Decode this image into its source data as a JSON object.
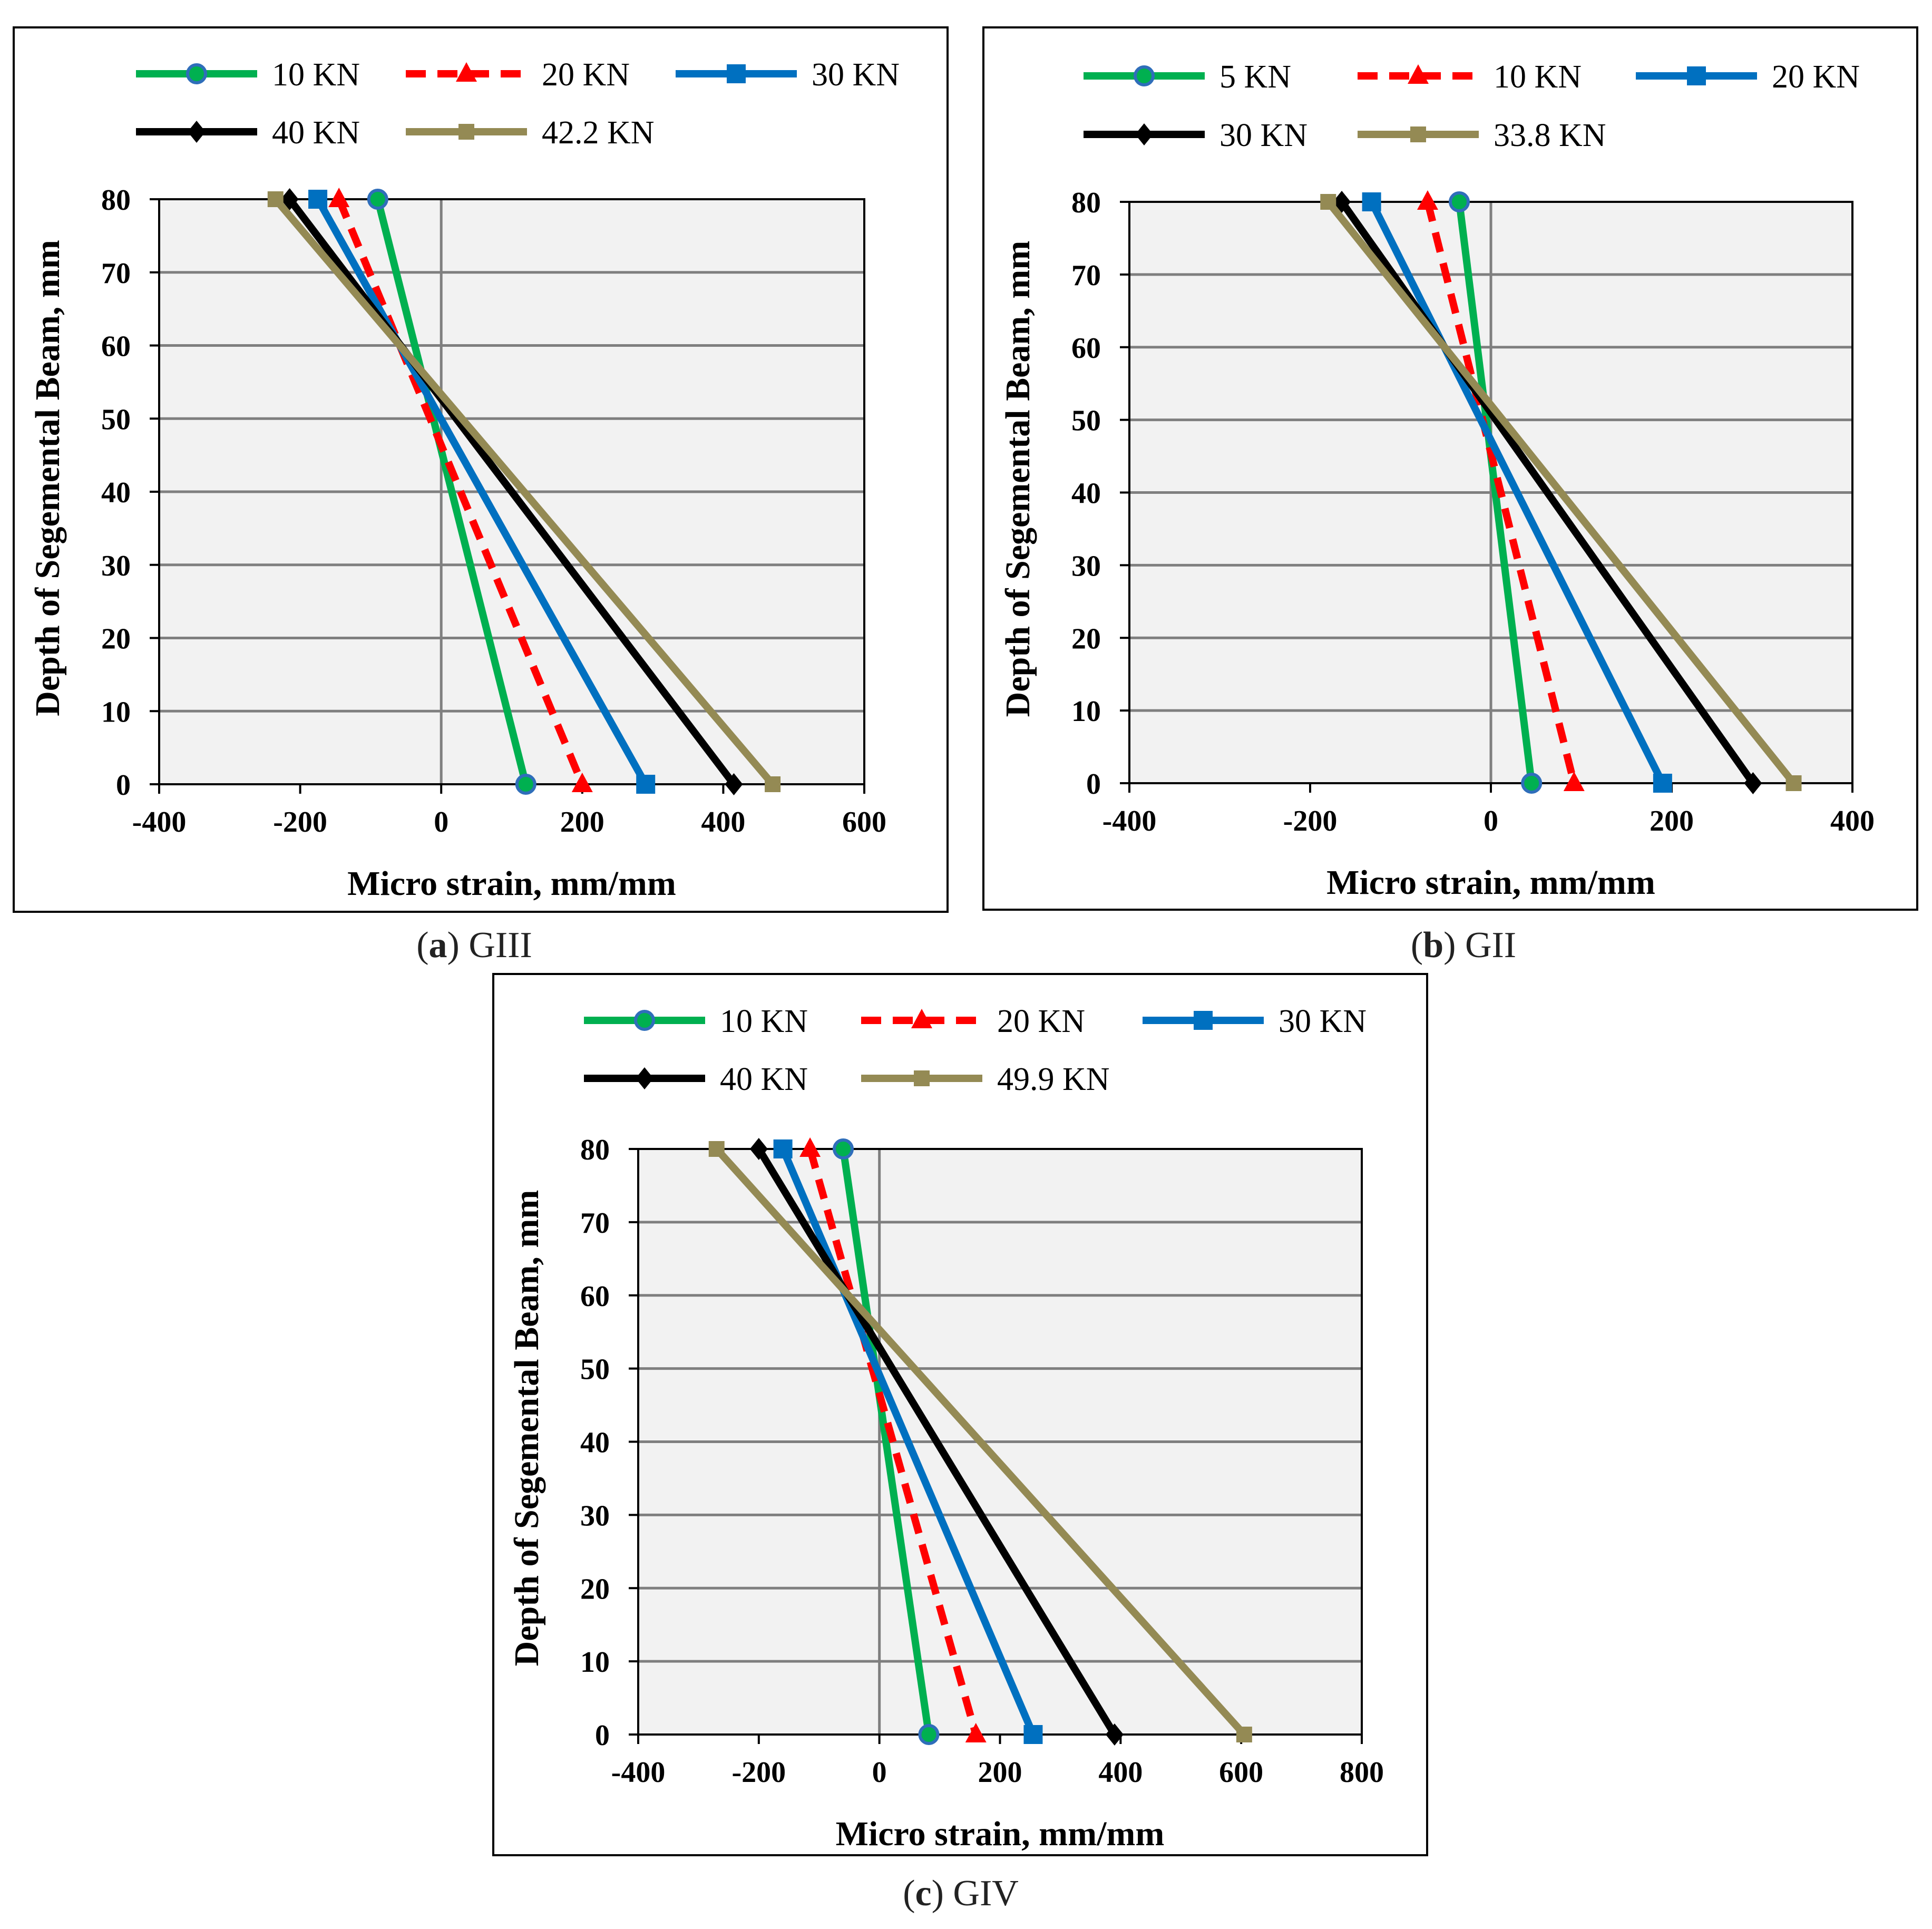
{
  "chart_data": [
    {
      "type": "line",
      "panel_label": "a",
      "caption": "GIII",
      "xlabel": "Micro strain, mm/mm",
      "ylabel": "Depth of Segemental Beam, mm",
      "xlim": [
        -400,
        600
      ],
      "ylim": [
        0,
        80
      ],
      "xticks": [
        -400,
        -200,
        0,
        200,
        400,
        600
      ],
      "yticks": [
        0,
        10,
        20,
        30,
        40,
        50,
        60,
        70,
        80
      ],
      "grid": true,
      "legend_position": "top",
      "series": [
        {
          "name": "10 KN",
          "color": "#00B050",
          "marker": "circle",
          "dash": "solid",
          "points": [
            {
              "x": -90,
              "y": 80
            },
            {
              "x": 120,
              "y": 0
            }
          ]
        },
        {
          "name": "20 KN",
          "color": "#FF0000",
          "marker": "triangle",
          "dash": "dashed",
          "points": [
            {
              "x": -145,
              "y": 80
            },
            {
              "x": 200,
              "y": 0
            }
          ]
        },
        {
          "name": "30 KN",
          "color": "#0070C0",
          "marker": "square",
          "dash": "solid",
          "points": [
            {
              "x": -175,
              "y": 80
            },
            {
              "x": 290,
              "y": 0
            }
          ]
        },
        {
          "name": "40 KN",
          "color": "#000000",
          "marker": "diamond",
          "dash": "solid",
          "points": [
            {
              "x": -215,
              "y": 80
            },
            {
              "x": 415,
              "y": 0
            }
          ]
        },
        {
          "name": "42.2 KN",
          "color": "#948A54",
          "marker": "square-small",
          "dash": "solid",
          "points": [
            {
              "x": -235,
              "y": 80
            },
            {
              "x": 470,
              "y": 0
            }
          ]
        }
      ]
    },
    {
      "type": "line",
      "panel_label": "b",
      "caption": "GII",
      "xlabel": "Micro strain, mm/mm",
      "ylabel": "Depth of Segemental Beam, mm",
      "xlim": [
        -400,
        400
      ],
      "ylim": [
        0,
        80
      ],
      "xticks": [
        -400,
        -200,
        0,
        200,
        400
      ],
      "yticks": [
        0,
        10,
        20,
        30,
        40,
        50,
        60,
        70,
        80
      ],
      "grid": true,
      "legend_position": "top",
      "series": [
        {
          "name": "5 KN",
          "color": "#00B050",
          "marker": "circle",
          "dash": "solid",
          "points": [
            {
              "x": -35,
              "y": 80
            },
            {
              "x": 45,
              "y": 0
            }
          ]
        },
        {
          "name": "10 KN",
          "color": "#FF0000",
          "marker": "triangle",
          "dash": "dashed",
          "points": [
            {
              "x": -70,
              "y": 80
            },
            {
              "x": 92,
              "y": 0
            }
          ]
        },
        {
          "name": "20 KN",
          "color": "#0070C0",
          "marker": "square",
          "dash": "solid",
          "points": [
            {
              "x": -132,
              "y": 80
            },
            {
              "x": 190,
              "y": 0
            }
          ]
        },
        {
          "name": "30 KN",
          "color": "#000000",
          "marker": "diamond",
          "dash": "solid",
          "points": [
            {
              "x": -165,
              "y": 80
            },
            {
              "x": 290,
              "y": 0
            }
          ]
        },
        {
          "name": "33.8 KN",
          "color": "#948A54",
          "marker": "square-small",
          "dash": "solid",
          "points": [
            {
              "x": -180,
              "y": 80
            },
            {
              "x": 335,
              "y": 0
            }
          ]
        }
      ]
    },
    {
      "type": "line",
      "panel_label": "c",
      "caption": "GIV",
      "xlabel": "Micro strain, mm/mm",
      "ylabel": "Depth of Segemental Beam, mm",
      "xlim": [
        -400,
        800
      ],
      "ylim": [
        0,
        80
      ],
      "xticks": [
        -400,
        -200,
        0,
        200,
        400,
        600,
        800
      ],
      "yticks": [
        0,
        10,
        20,
        30,
        40,
        50,
        60,
        70,
        80
      ],
      "grid": true,
      "legend_position": "top",
      "series": [
        {
          "name": "10 KN",
          "color": "#00B050",
          "marker": "circle",
          "dash": "solid",
          "points": [
            {
              "x": -60,
              "y": 80
            },
            {
              "x": 82,
              "y": 0
            }
          ]
        },
        {
          "name": "20 KN",
          "color": "#FF0000",
          "marker": "triangle",
          "dash": "dashed",
          "points": [
            {
              "x": -115,
              "y": 80
            },
            {
              "x": 160,
              "y": 0
            }
          ]
        },
        {
          "name": "30 KN",
          "color": "#0070C0",
          "marker": "square",
          "dash": "solid",
          "points": [
            {
              "x": -160,
              "y": 80
            },
            {
              "x": 255,
              "y": 0
            }
          ]
        },
        {
          "name": "40 KN",
          "color": "#000000",
          "marker": "diamond",
          "dash": "solid",
          "points": [
            {
              "x": -200,
              "y": 80
            },
            {
              "x": 390,
              "y": 0
            }
          ]
        },
        {
          "name": "49.9 KN",
          "color": "#948A54",
          "marker": "square-small",
          "dash": "solid",
          "points": [
            {
              "x": -270,
              "y": 80
            },
            {
              "x": 605,
              "y": 0
            }
          ]
        }
      ]
    }
  ]
}
